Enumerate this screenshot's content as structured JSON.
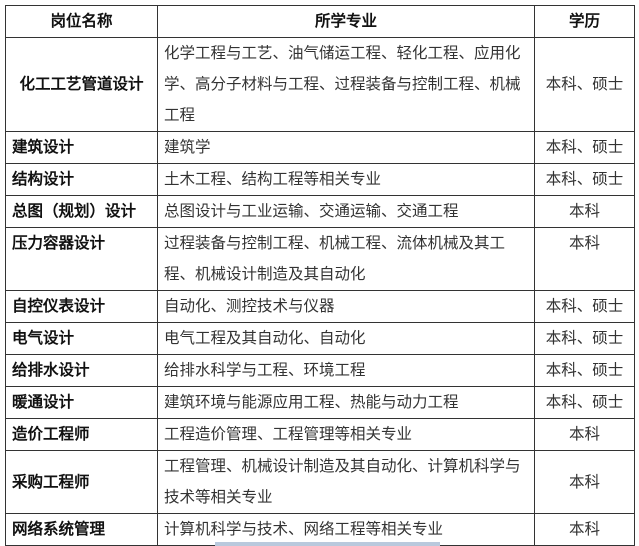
{
  "table": {
    "headers": [
      "岗位名称",
      "所学专业",
      "学历"
    ],
    "rows": [
      {
        "position": "化工工艺管道设计",
        "majors": "化学工程与工艺、油气储运工程、轻化工程、应用化学、高分子材料与工程、过程装备与控制工程、机械工程",
        "degree": "本科、硕士"
      },
      {
        "position": "建筑设计",
        "majors": "建筑学",
        "degree": "本科、硕士"
      },
      {
        "position": "结构设计",
        "majors": "土木工程、结构工程等相关专业",
        "degree": "本科、硕士"
      },
      {
        "position": "总图（规划）设计",
        "majors": "总图设计与工业运输、交通运输、交通工程",
        "degree": "本科"
      },
      {
        "position": "压力容器设计",
        "majors": "过程装备与控制工程、机械工程、流体机械及其工程、机械设计制造及其自动化",
        "degree": "本科"
      },
      {
        "position": "自控仪表设计",
        "majors": "自动化、测控技术与仪器",
        "degree": "本科、硕士"
      },
      {
        "position": "电气设计",
        "majors": "电气工程及其自动化、自动化",
        "degree": "本科、硕士"
      },
      {
        "position": "给排水设计",
        "majors": "给排水科学与工程、环境工程",
        "degree": "本科、硕士"
      },
      {
        "position": "暖通设计",
        "majors": "建筑环境与能源应用工程、热能与动力工程",
        "degree": "本科、硕士"
      },
      {
        "position": "造价工程师",
        "majors": "工程造价管理、工程管理等相关专业",
        "degree": "本科"
      },
      {
        "position": "采购工程师",
        "majors": "工程管理、机械设计制造及其自动化、计算机科学与技术等相关专业",
        "degree": "本科"
      },
      {
        "position": "网络系统管理",
        "majors": "计算机科学与技术、网络工程等相关专业",
        "degree": "本科"
      }
    ]
  }
}
